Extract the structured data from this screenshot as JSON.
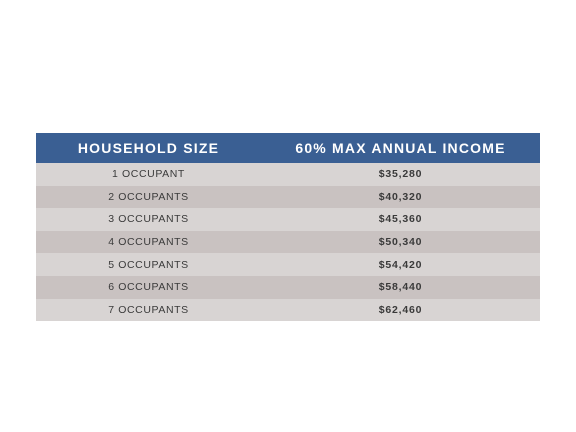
{
  "table": {
    "headers": {
      "household_size": "HOUSEHOLD SIZE",
      "max_income": "60% MAX ANNUAL INCOME"
    },
    "rows": [
      {
        "size": "1 OCCUPANT",
        "income": "$35,280"
      },
      {
        "size": "2 OCCUPANTS",
        "income": "$40,320"
      },
      {
        "size": "3 OCCUPANTS",
        "income": "$45,360"
      },
      {
        "size": "4 OCCUPANTS",
        "income": "$50,340"
      },
      {
        "size": "5 OCCUPANTS",
        "income": "$54,420"
      },
      {
        "size": "6 OCCUPANTS",
        "income": "$58,440"
      },
      {
        "size": "7 OCCUPANTS",
        "income": "$62,460"
      }
    ]
  },
  "colors": {
    "header_bg": "#3a5f93",
    "row_light": "#d8d4d3",
    "row_dark": "#c9c2c1"
  }
}
